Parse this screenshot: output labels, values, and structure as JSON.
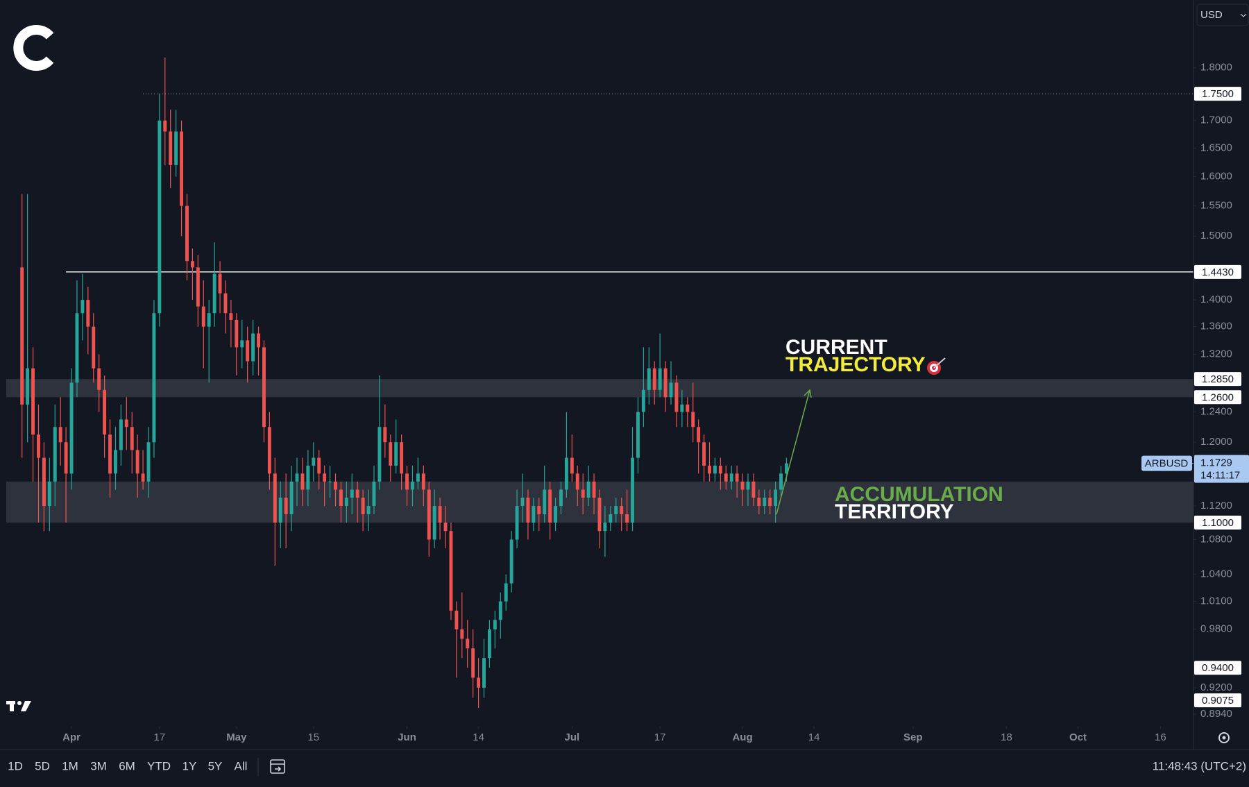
{
  "chart_data": {
    "type": "candlestick",
    "log_scale": true,
    "up_color": "#26a69a",
    "down_color": "#ef5350",
    "xlim": [
      "03-19",
      "10-22"
    ],
    "ylim": [
      0.882,
      1.937
    ],
    "xticks": [
      {
        "value": "04-01",
        "label": "Apr"
      },
      {
        "value": "04-17",
        "label": "17"
      },
      {
        "value": "05-01",
        "label": "May"
      },
      {
        "value": "05-15",
        "label": "15"
      },
      {
        "value": "06-01",
        "label": "Jun"
      },
      {
        "value": "06-14",
        "label": "14"
      },
      {
        "value": "07-01",
        "label": "Jul"
      },
      {
        "value": "07-17",
        "label": "17"
      },
      {
        "value": "08-01",
        "label": "Aug"
      },
      {
        "value": "08-14",
        "label": "14"
      },
      {
        "value": "09-01",
        "label": "Sep"
      },
      {
        "value": "09-18",
        "label": "18"
      },
      {
        "value": "10-01",
        "label": "Oct"
      },
      {
        "value": "10-16",
        "label": "16"
      }
    ],
    "yticks": [
      {
        "value": 1.8,
        "label": "1.8000"
      },
      {
        "value": 1.7,
        "label": "1.7000"
      },
      {
        "value": 1.65,
        "label": "1.6500"
      },
      {
        "value": 1.6,
        "label": "1.6000"
      },
      {
        "value": 1.55,
        "label": "1.5500"
      },
      {
        "value": 1.5,
        "label": "1.5000"
      },
      {
        "value": 1.4,
        "label": "1.4000"
      },
      {
        "value": 1.36,
        "label": "1.3600"
      },
      {
        "value": 1.32,
        "label": "1.3200"
      },
      {
        "value": 1.24,
        "label": "1.2400"
      },
      {
        "value": 1.2,
        "label": "1.2000"
      },
      {
        "value": 1.12,
        "label": "1.1200"
      },
      {
        "value": 1.08,
        "label": "1.0800"
      },
      {
        "value": 1.04,
        "label": "1.0400"
      },
      {
        "value": 1.01,
        "label": "1.0100"
      },
      {
        "value": 0.98,
        "label": "0.9800"
      },
      {
        "value": 0.92,
        "label": "0.9200"
      },
      {
        "value": 0.894,
        "label": "0.8940"
      }
    ],
    "levels": [
      {
        "value": 1.75,
        "label": "1.7500",
        "line": "dotted",
        "from": "04-14"
      },
      {
        "value": 1.443,
        "label": "1.4430",
        "line": "solid",
        "from": "03-31"
      },
      {
        "value": 1.285,
        "label": "1.2850"
      },
      {
        "value": 1.26,
        "label": "1.2600"
      },
      {
        "value": 1.1,
        "label": "1.1000"
      },
      {
        "value": 0.94,
        "label": "0.9400"
      },
      {
        "value": 0.9075,
        "label": "0.9075"
      }
    ],
    "zones": [
      {
        "from": 1.26,
        "to": 1.285
      },
      {
        "from": 1.1,
        "to": 1.15
      }
    ],
    "symbol": "ARBUSD",
    "countdown": "14:11:17",
    "annotations": [
      {
        "lines": [
          "CURRENT",
          "TRAJECTORY"
        ],
        "colors": [
          "#ffffff",
          "#f3ec3b"
        ]
      },
      {
        "lines": [
          "ACCUMULATION",
          "TERRITORY"
        ],
        "colors": [
          "#6aac4a",
          "#ffffff"
        ]
      }
    ],
    "x": [
      "03-23",
      "03-24",
      "03-25",
      "03-26",
      "03-27",
      "03-28",
      "03-29",
      "03-30",
      "03-31",
      "04-01",
      "04-02",
      "04-03",
      "04-04",
      "04-05",
      "04-06",
      "04-07",
      "04-08",
      "04-09",
      "04-10",
      "04-11",
      "04-12",
      "04-13",
      "04-14",
      "04-15",
      "04-16",
      "04-17",
      "04-18",
      "04-19",
      "04-20",
      "04-21",
      "04-22",
      "04-23",
      "04-24",
      "04-25",
      "04-26",
      "04-27",
      "04-28",
      "04-29",
      "04-30",
      "05-01",
      "05-02",
      "05-03",
      "05-04",
      "05-05",
      "05-06",
      "05-07",
      "05-08",
      "05-09",
      "05-10",
      "05-11",
      "05-12",
      "05-13",
      "05-14",
      "05-15",
      "05-16",
      "05-17",
      "05-18",
      "05-19",
      "05-20",
      "05-21",
      "05-22",
      "05-23",
      "05-24",
      "05-25",
      "05-26",
      "05-27",
      "05-28",
      "05-29",
      "05-30",
      "05-31",
      "06-01",
      "06-02",
      "06-03",
      "06-04",
      "06-05",
      "06-06",
      "06-07",
      "06-08",
      "06-09",
      "06-10",
      "06-11",
      "06-12",
      "06-13",
      "06-14",
      "06-15",
      "06-16",
      "06-17",
      "06-18",
      "06-19",
      "06-20",
      "06-21",
      "06-22",
      "06-23",
      "06-24",
      "06-25",
      "06-26",
      "06-27",
      "06-28",
      "06-29",
      "06-30",
      "07-01",
      "07-02",
      "07-03",
      "07-04",
      "07-05",
      "07-06",
      "07-07",
      "07-08",
      "07-09",
      "07-10",
      "07-11",
      "07-12",
      "07-13",
      "07-14",
      "07-15",
      "07-16",
      "07-17",
      "07-18",
      "07-19",
      "07-20",
      "07-21",
      "07-22",
      "07-23",
      "07-24",
      "07-25",
      "07-26",
      "07-27",
      "07-28",
      "07-29",
      "07-30",
      "07-31",
      "08-01",
      "08-02",
      "08-03",
      "08-04",
      "08-05",
      "08-06",
      "08-07",
      "08-08",
      "08-09"
    ],
    "ohlc": [
      [
        1.45,
        1.57,
        1.18,
        1.25
      ],
      [
        1.25,
        1.57,
        1.2,
        1.3
      ],
      [
        1.3,
        1.33,
        1.15,
        1.21
      ],
      [
        1.21,
        1.25,
        1.1,
        1.18
      ],
      [
        1.18,
        1.2,
        1.09,
        1.12
      ],
      [
        1.12,
        1.18,
        1.09,
        1.15
      ],
      [
        1.15,
        1.25,
        1.12,
        1.22
      ],
      [
        1.22,
        1.26,
        1.17,
        1.2
      ],
      [
        1.2,
        1.22,
        1.1,
        1.16
      ],
      [
        1.16,
        1.3,
        1.14,
        1.28
      ],
      [
        1.28,
        1.43,
        1.26,
        1.38
      ],
      [
        1.38,
        1.44,
        1.34,
        1.4
      ],
      [
        1.4,
        1.42,
        1.32,
        1.36
      ],
      [
        1.36,
        1.38,
        1.28,
        1.3
      ],
      [
        1.3,
        1.32,
        1.24,
        1.27
      ],
      [
        1.27,
        1.29,
        1.18,
        1.21
      ],
      [
        1.21,
        1.23,
        1.13,
        1.16
      ],
      [
        1.16,
        1.22,
        1.14,
        1.19
      ],
      [
        1.19,
        1.25,
        1.17,
        1.23
      ],
      [
        1.23,
        1.26,
        1.19,
        1.22
      ],
      [
        1.22,
        1.24,
        1.16,
        1.19
      ],
      [
        1.19,
        1.21,
        1.13,
        1.16
      ],
      [
        1.16,
        1.19,
        1.14,
        1.15
      ],
      [
        1.15,
        1.22,
        1.13,
        1.2
      ],
      [
        1.2,
        1.4,
        1.18,
        1.38
      ],
      [
        1.38,
        1.75,
        1.36,
        1.7
      ],
      [
        1.7,
        1.82,
        1.62,
        1.68
      ],
      [
        1.68,
        1.72,
        1.58,
        1.62
      ],
      [
        1.62,
        1.72,
        1.6,
        1.68
      ],
      [
        1.68,
        1.7,
        1.5,
        1.55
      ],
      [
        1.55,
        1.57,
        1.43,
        1.46
      ],
      [
        1.46,
        1.48,
        1.4,
        1.45
      ],
      [
        1.45,
        1.47,
        1.36,
        1.39
      ],
      [
        1.39,
        1.43,
        1.3,
        1.36
      ],
      [
        1.36,
        1.4,
        1.28,
        1.38
      ],
      [
        1.38,
        1.49,
        1.36,
        1.44
      ],
      [
        1.44,
        1.46,
        1.38,
        1.41
      ],
      [
        1.41,
        1.43,
        1.35,
        1.38
      ],
      [
        1.38,
        1.4,
        1.33,
        1.37
      ],
      [
        1.37,
        1.38,
        1.29,
        1.33
      ],
      [
        1.33,
        1.37,
        1.3,
        1.34
      ],
      [
        1.34,
        1.36,
        1.28,
        1.31
      ],
      [
        1.31,
        1.37,
        1.29,
        1.35
      ],
      [
        1.35,
        1.36,
        1.29,
        1.33
      ],
      [
        1.33,
        1.34,
        1.2,
        1.22
      ],
      [
        1.22,
        1.24,
        1.14,
        1.16
      ],
      [
        1.16,
        1.18,
        1.05,
        1.1
      ],
      [
        1.1,
        1.15,
        1.07,
        1.13
      ],
      [
        1.13,
        1.16,
        1.07,
        1.11
      ],
      [
        1.11,
        1.17,
        1.09,
        1.15
      ],
      [
        1.15,
        1.18,
        1.12,
        1.16
      ],
      [
        1.16,
        1.18,
        1.12,
        1.14
      ],
      [
        1.14,
        1.19,
        1.12,
        1.17
      ],
      [
        1.17,
        1.2,
        1.15,
        1.18
      ],
      [
        1.18,
        1.19,
        1.14,
        1.16
      ],
      [
        1.16,
        1.17,
        1.12,
        1.15
      ],
      [
        1.15,
        1.17,
        1.13,
        1.15
      ],
      [
        1.15,
        1.16,
        1.12,
        1.14
      ],
      [
        1.14,
        1.15,
        1.1,
        1.12
      ],
      [
        1.12,
        1.15,
        1.1,
        1.13
      ],
      [
        1.13,
        1.16,
        1.11,
        1.14
      ],
      [
        1.14,
        1.15,
        1.1,
        1.13
      ],
      [
        1.13,
        1.14,
        1.09,
        1.11
      ],
      [
        1.11,
        1.14,
        1.09,
        1.12
      ],
      [
        1.12,
        1.17,
        1.11,
        1.15
      ],
      [
        1.15,
        1.29,
        1.14,
        1.22
      ],
      [
        1.22,
        1.25,
        1.18,
        1.2
      ],
      [
        1.2,
        1.21,
        1.15,
        1.17
      ],
      [
        1.17,
        1.23,
        1.16,
        1.2
      ],
      [
        1.2,
        1.21,
        1.14,
        1.16
      ],
      [
        1.16,
        1.17,
        1.12,
        1.14
      ],
      [
        1.14,
        1.17,
        1.12,
        1.15
      ],
      [
        1.15,
        1.18,
        1.14,
        1.16
      ],
      [
        1.16,
        1.17,
        1.12,
        1.14
      ],
      [
        1.14,
        1.15,
        1.06,
        1.08
      ],
      [
        1.08,
        1.14,
        1.07,
        1.12
      ],
      [
        1.12,
        1.13,
        1.08,
        1.1
      ],
      [
        1.1,
        1.12,
        1.07,
        1.09
      ],
      [
        1.09,
        1.1,
        0.99,
        1.0
      ],
      [
        1.0,
        1.01,
        0.93,
        0.98
      ],
      [
        0.98,
        1.02,
        0.95,
        0.97
      ],
      [
        0.97,
        0.99,
        0.94,
        0.96
      ],
      [
        0.96,
        0.98,
        0.91,
        0.93
      ],
      [
        0.93,
        0.95,
        0.9,
        0.92
      ],
      [
        0.92,
        0.97,
        0.91,
        0.95
      ],
      [
        0.95,
        0.99,
        0.94,
        0.98
      ],
      [
        0.98,
        1.0,
        0.96,
        0.99
      ],
      [
        0.99,
        1.02,
        0.97,
        1.01
      ],
      [
        1.01,
        1.04,
        1.0,
        1.03
      ],
      [
        1.03,
        1.09,
        1.02,
        1.08
      ],
      [
        1.08,
        1.14,
        1.07,
        1.12
      ],
      [
        1.12,
        1.16,
        1.1,
        1.13
      ],
      [
        1.13,
        1.14,
        1.08,
        1.1
      ],
      [
        1.1,
        1.13,
        1.09,
        1.12
      ],
      [
        1.12,
        1.13,
        1.09,
        1.11
      ],
      [
        1.11,
        1.17,
        1.1,
        1.14
      ],
      [
        1.14,
        1.15,
        1.08,
        1.1
      ],
      [
        1.1,
        1.13,
        1.09,
        1.12
      ],
      [
        1.12,
        1.15,
        1.11,
        1.14
      ],
      [
        1.14,
        1.24,
        1.13,
        1.18
      ],
      [
        1.18,
        1.21,
        1.15,
        1.16
      ],
      [
        1.16,
        1.17,
        1.12,
        1.14
      ],
      [
        1.14,
        1.16,
        1.11,
        1.13
      ],
      [
        1.13,
        1.17,
        1.12,
        1.15
      ],
      [
        1.15,
        1.16,
        1.11,
        1.13
      ],
      [
        1.13,
        1.14,
        1.07,
        1.09
      ],
      [
        1.09,
        1.12,
        1.06,
        1.1
      ],
      [
        1.1,
        1.12,
        1.09,
        1.11
      ],
      [
        1.11,
        1.13,
        1.1,
        1.12
      ],
      [
        1.12,
        1.13,
        1.09,
        1.11
      ],
      [
        1.11,
        1.14,
        1.09,
        1.1
      ],
      [
        1.1,
        1.22,
        1.09,
        1.18
      ],
      [
        1.18,
        1.26,
        1.16,
        1.24
      ],
      [
        1.24,
        1.33,
        1.22,
        1.27
      ],
      [
        1.27,
        1.33,
        1.25,
        1.3
      ],
      [
        1.3,
        1.31,
        1.25,
        1.27
      ],
      [
        1.27,
        1.35,
        1.26,
        1.3
      ],
      [
        1.3,
        1.31,
        1.24,
        1.26
      ],
      [
        1.26,
        1.31,
        1.25,
        1.28
      ],
      [
        1.28,
        1.29,
        1.22,
        1.24
      ],
      [
        1.24,
        1.27,
        1.22,
        1.25
      ],
      [
        1.25,
        1.26,
        1.22,
        1.24
      ],
      [
        1.24,
        1.28,
        1.2,
        1.22
      ],
      [
        1.22,
        1.23,
        1.16,
        1.2
      ],
      [
        1.2,
        1.21,
        1.15,
        1.17
      ],
      [
        1.17,
        1.2,
        1.15,
        1.16
      ],
      [
        1.16,
        1.18,
        1.15,
        1.17
      ],
      [
        1.17,
        1.18,
        1.14,
        1.16
      ],
      [
        1.16,
        1.17,
        1.14,
        1.15
      ],
      [
        1.15,
        1.17,
        1.14,
        1.16
      ],
      [
        1.16,
        1.17,
        1.13,
        1.15
      ],
      [
        1.15,
        1.16,
        1.12,
        1.14
      ],
      [
        1.14,
        1.16,
        1.12,
        1.15
      ],
      [
        1.15,
        1.16,
        1.12,
        1.13
      ],
      [
        1.13,
        1.14,
        1.11,
        1.12
      ],
      [
        1.12,
        1.14,
        1.11,
        1.13
      ],
      [
        1.13,
        1.14,
        1.11,
        1.12
      ],
      [
        1.12,
        1.15,
        1.1,
        1.14
      ],
      [
        1.14,
        1.17,
        1.13,
        1.16
      ],
      [
        1.16,
        1.18,
        1.15,
        1.1729
      ]
    ]
  },
  "ui": {
    "currency": "USD",
    "ranges": [
      "1D",
      "5D",
      "1M",
      "3M",
      "6M",
      "YTD",
      "1Y",
      "5Y",
      "All"
    ],
    "clock": "11:48:43 (UTC+2)"
  }
}
